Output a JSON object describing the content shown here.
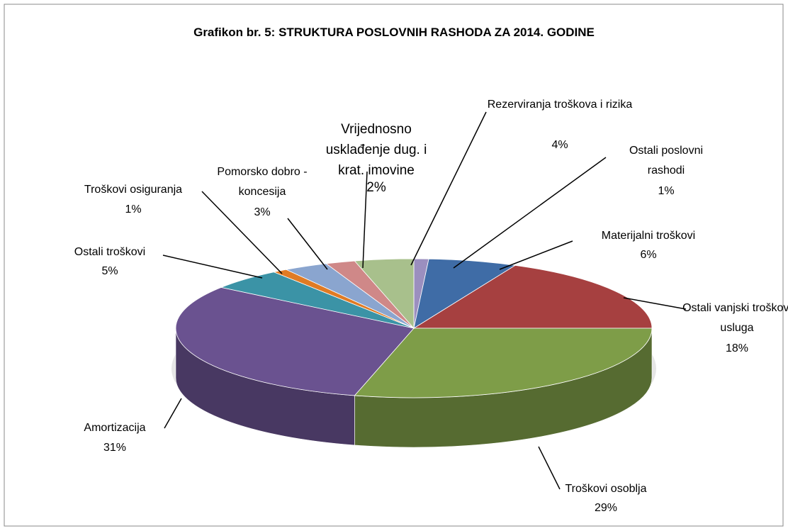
{
  "chart_data": {
    "type": "pie3d",
    "title": "Grafikon br. 5: STRUKTURA POSLOVNIH RASHODA ZA 2014. GODINE",
    "categories": [
      "Ostali poslovni rashodi",
      "Materijalni troškovi",
      "Ostali vanjski troškovi usluga",
      "Troškovi osoblja",
      "Amortizacija",
      "Ostali troškovi",
      "Troškovi osiguranja",
      "Pomorsko dobro - koncesija",
      "Vrijednosno usklađenje dug. i krat. imovine",
      "Rezerviranja troškova i rizika"
    ],
    "values": [
      1,
      6,
      18,
      29,
      31,
      5,
      1,
      3,
      2,
      4
    ],
    "value_labels": [
      "1%",
      "6%",
      "18%",
      "29%",
      "31%",
      "5%",
      "1%",
      "3%",
      "2%",
      "4%"
    ],
    "colors": [
      "#9b8fbf",
      "#3f6ca6",
      "#a64040",
      "#7e9d48",
      "#6a5290",
      "#3b93a6",
      "#e07b24",
      "#8aa5cf",
      "#cf8888",
      "#a8c08c"
    ]
  }
}
